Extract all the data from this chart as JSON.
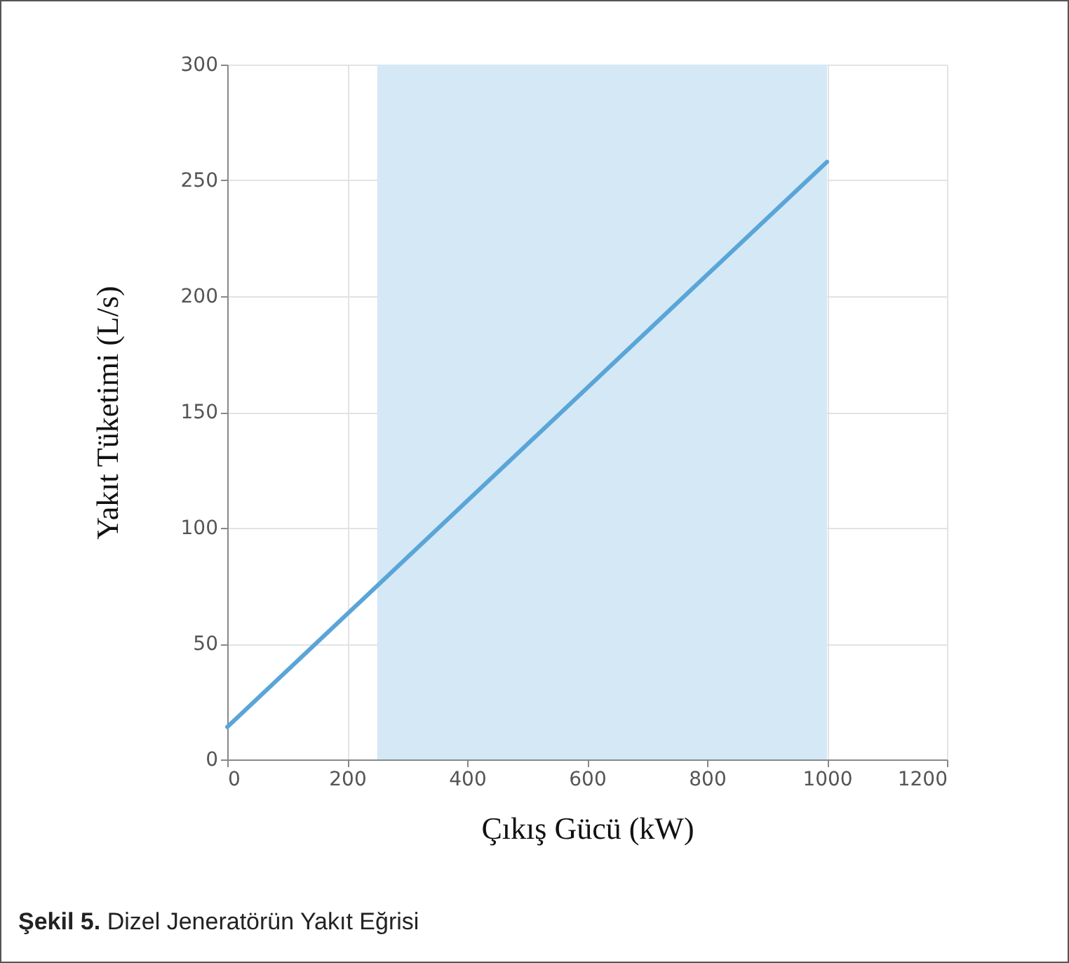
{
  "chart_data": {
    "type": "line",
    "xlabel": "Çıkış Gücü (kW)",
    "ylabel": "Yakıt Tüketimi (L/s)",
    "x": [
      0,
      1000
    ],
    "series": [
      {
        "color": "#5aa5d8",
        "values": [
          14,
          258
        ]
      }
    ],
    "xlim": [
      0,
      1200
    ],
    "xticks": [
      0,
      200,
      400,
      600,
      800,
      1000,
      1200
    ],
    "ylim": [
      0,
      300
    ],
    "yticks": [
      0,
      50,
      100,
      150,
      200,
      250,
      300
    ],
    "grid": true,
    "bands": [
      {
        "axis": "x",
        "from": 250,
        "to": 1000,
        "color": "#d4e8f6"
      }
    ],
    "annotations": [
      "Şekil 5. Dizel Jeneratörün Yakıt Eğrisi"
    ]
  }
}
